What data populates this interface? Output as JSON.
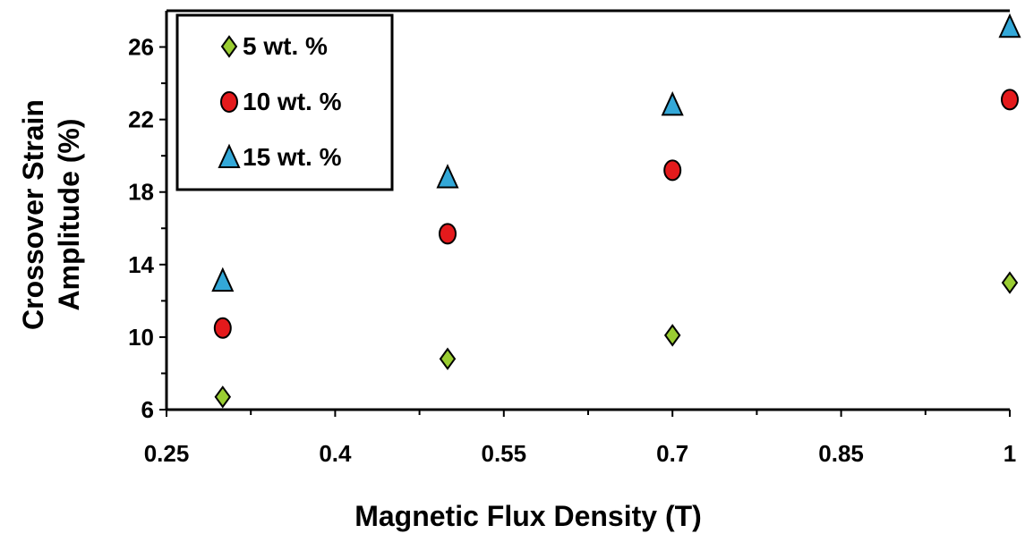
{
  "chart_data": {
    "type": "scatter",
    "title": "",
    "xlabel": "Magnetic Flux Density (T)",
    "ylabel_lines": [
      "Crossover Strain",
      "Amplitude (%)"
    ],
    "xlim": [
      0.25,
      1.0
    ],
    "ylim": [
      6,
      28
    ],
    "x_ticks": [
      0.25,
      0.4,
      0.55,
      0.7,
      0.85,
      1.0
    ],
    "x_tick_labels": [
      "0.25",
      "0.4",
      "0.55",
      "0.7",
      "0.85",
      "1"
    ],
    "y_ticks": [
      6,
      10,
      14,
      18,
      22,
      26
    ],
    "y_tick_labels": [
      "6",
      "10",
      "14",
      "18",
      "22",
      "26"
    ],
    "grid": false,
    "legend_position": "top-left",
    "x": [
      0.3,
      0.5,
      0.7,
      1.0
    ],
    "series": [
      {
        "name": "5 wt. %",
        "marker": "diamond",
        "color": "#9ACD32",
        "values": [
          6.7,
          8.8,
          10.1,
          13.0
        ]
      },
      {
        "name": "10 wt. %",
        "marker": "circle",
        "color": "#E41A1C",
        "values": [
          10.5,
          15.7,
          19.2,
          23.1
        ]
      },
      {
        "name": "15 wt. %",
        "marker": "triangle",
        "color": "#33A8D8",
        "values": [
          13.1,
          18.8,
          22.8,
          27.1
        ]
      }
    ]
  }
}
